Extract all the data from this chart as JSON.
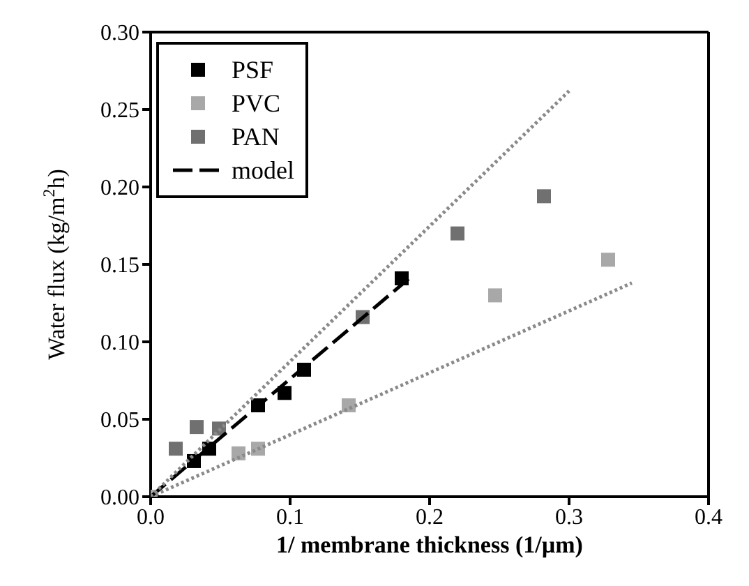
{
  "chart_data": {
    "type": "scatter",
    "xlabel": "1/ membrane thickness (1/µm)",
    "ylabel": "Water flux (kg/m$^{2}$h)",
    "xlim": [
      0,
      0.4
    ],
    "xticks": [
      {
        "value": 0,
        "label": "0.0"
      },
      {
        "value": 0.1,
        "label": "0.1"
      },
      {
        "value": 0.2,
        "label": "0.2"
      },
      {
        "value": 0.3,
        "label": "0.3"
      },
      {
        "value": 0.4,
        "label": "0.4"
      }
    ],
    "ylim": [
      0,
      0.3
    ],
    "yticks": [
      {
        "value": 0,
        "label": "0.00"
      },
      {
        "value": 0.05,
        "label": "0.05"
      },
      {
        "value": 0.1,
        "label": "0.10"
      },
      {
        "value": 0.15,
        "label": "0.15"
      },
      {
        "value": 0.2,
        "label": "0.20"
      },
      {
        "value": 0.25,
        "label": "0.25"
      },
      {
        "value": 0.3,
        "label": "0.30"
      }
    ],
    "legend": "top left",
    "marker": "square",
    "series": [
      {
        "name": "PSF",
        "color": "#000000",
        "x": [
          0.031,
          0.042,
          0.077,
          0.096,
          0.11,
          0.18
        ],
        "values": [
          0.023,
          0.031,
          0.059,
          0.067,
          0.082,
          0.141
        ]
      },
      {
        "name": "PVC",
        "color": "#a8a8a8",
        "x": [
          0,
          0.063,
          0.077,
          0.142,
          0.247,
          0.328
        ],
        "values": [
          0,
          0.028,
          0.031,
          0.059,
          0.13,
          0.153
        ]
      },
      {
        "name": "PAN",
        "color": "#707070",
        "x": [
          0.018,
          0.033,
          0.049,
          0.152,
          0.22,
          0.282
        ],
        "values": [
          0.031,
          0.045,
          0.044,
          0.116,
          0.17,
          0.194
        ]
      },
      {
        "name": "model",
        "type": "line",
        "marker": "none",
        "line_style": "dashed",
        "color": "#000000",
        "x": [
          0,
          0.188
        ],
        "values": [
          0,
          0.143
        ]
      },
      {
        "type": "line",
        "marker": "none",
        "line_style": "dotted",
        "color": "#8a8a8a",
        "x": [
          0,
          0.3
        ],
        "values": [
          0,
          0.262
        ]
      },
      {
        "type": "line",
        "marker": "none",
        "line_style": "dotted",
        "color": "#8a8a8a",
        "x": [
          0,
          0.345
        ],
        "values": [
          0,
          0.138
        ]
      }
    ]
  }
}
